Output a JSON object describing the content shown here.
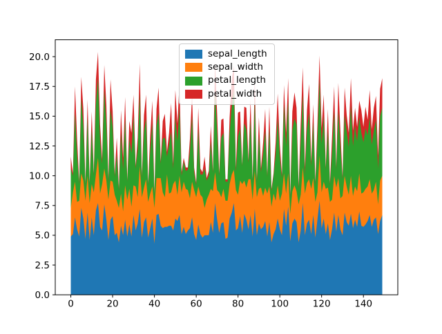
{
  "figure": {
    "background_color": "#ffffff"
  },
  "legend": {
    "position": "upper center"
  },
  "chart_data": {
    "type": "area",
    "stacked": true,
    "title": "",
    "xlabel": "",
    "ylabel": "",
    "grid": false,
    "n_points": 150,
    "xlim": [
      -7.45,
      156.45
    ],
    "ylim": [
      0,
      21.42
    ],
    "x_tick_labels": [
      "0",
      "20",
      "40",
      "60",
      "80",
      "100",
      "120",
      "140"
    ],
    "x_tick_values": [
      0,
      20,
      40,
      60,
      80,
      100,
      120,
      140
    ],
    "y_tick_labels": [
      "0.0",
      "2.5",
      "5.0",
      "7.5",
      "10.0",
      "12.5",
      "15.0",
      "17.5",
      "20.0"
    ],
    "y_tick_values": [
      0,
      2.5,
      5,
      7.5,
      10,
      12.5,
      15,
      17.5,
      20
    ],
    "legend_position": "upper center",
    "series": [
      {
        "name": "sepal_length",
        "color": "#1f77b4",
        "values": [
          4.9,
          5.1,
          6.5,
          5.5,
          4.9,
          7.3,
          6.4,
          4.7,
          6.9,
          4.6,
          6.5,
          5.0,
          7.1,
          7.7,
          5.7,
          5.4,
          7.6,
          6.3,
          4.6,
          6.3,
          6.6,
          5.0,
          5.2,
          4.4,
          5.8,
          5.0,
          6.3,
          4.9,
          5.9,
          4.9,
          6.7,
          5.4,
          6.0,
          7.2,
          4.8,
          6.1,
          6.5,
          4.8,
          5.6,
          6.4,
          4.3,
          6.7,
          6.8,
          5.8,
          5.6,
          5.7,
          5.7,
          5.8,
          5.8,
          5.4,
          6.4,
          6.2,
          6.7,
          5.1,
          5.7,
          5.1,
          5.4,
          5.6,
          6.5,
          5.1,
          4.6,
          5.9,
          5.1,
          4.8,
          5.0,
          5.0,
          5.0,
          6.1,
          5.2,
          7.7,
          6.3,
          5.2,
          6.0,
          6.1,
          4.7,
          4.8,
          6.4,
          6.9,
          7.7,
          5.4,
          5.6,
          6.6,
          5.2,
          6.8,
          6.3,
          5.5,
          6.7,
          4.9,
          7.2,
          5.0,
          6.0,
          5.5,
          5.7,
          6.2,
          4.9,
          6.1,
          4.4,
          5.1,
          5.5,
          6.4,
          5.5,
          5.0,
          7.2,
          5.8,
          7.4,
          4.5,
          6.0,
          6.4,
          6.1,
          4.4,
          5.4,
          7.7,
          5.0,
          6.0,
          6.3,
          5.1,
          6.7,
          4.8,
          6.3,
          7.9,
          5.6,
          6.4,
          5.1,
          6.0,
          4.6,
          5.5,
          6.9,
          5.3,
          6.7,
          5.5,
          5.0,
          6.9,
          6.1,
          5.8,
          6.8,
          5.6,
          6.3,
          5.7,
          7.0,
          5.8,
          5.7,
          5.9,
          6.2,
          6.7,
          5.7,
          6.3,
          6.5,
          5.1,
          6.2,
          6.7
        ]
      },
      {
        "name": "sepal_width",
        "color": "#ff7f0e",
        "values": [
          2.4,
          3.5,
          3.0,
          2.3,
          3.0,
          2.9,
          3.2,
          3.2,
          3.1,
          3.1,
          2.8,
          3.6,
          3.0,
          3.8,
          2.8,
          3.9,
          3.0,
          3.3,
          3.4,
          3.3,
          2.9,
          3.4,
          2.7,
          2.9,
          2.7,
          2.0,
          2.9,
          3.1,
          3.0,
          2.5,
          2.5,
          3.7,
          2.2,
          3.6,
          3.4,
          2.9,
          3.2,
          3.0,
          2.9,
          2.7,
          3.0,
          3.1,
          3.0,
          4.0,
          3.0,
          2.5,
          4.4,
          2.7,
          2.8,
          3.9,
          3.2,
          2.2,
          3.3,
          3.5,
          3.8,
          3.8,
          3.4,
          2.5,
          3.0,
          3.7,
          3.6,
          3.2,
          3.3,
          3.4,
          2.3,
          3.0,
          3.4,
          2.8,
          3.5,
          2.6,
          2.5,
          3.4,
          2.2,
          2.8,
          3.2,
          3.1,
          2.9,
          3.2,
          2.8,
          3.4,
          2.8,
          3.0,
          4.1,
          2.8,
          2.7,
          4.2,
          3.0,
          3.1,
          3.2,
          3.2,
          2.9,
          3.5,
          2.6,
          2.8,
          3.6,
          3.0,
          3.0,
          3.4,
          2.4,
          2.8,
          2.4,
          3.5,
          3.0,
          2.7,
          2.8,
          2.3,
          2.7,
          2.8,
          2.6,
          3.2,
          3.0,
          3.0,
          3.5,
          3.4,
          3.4,
          3.8,
          3.1,
          3.0,
          2.3,
          3.8,
          3.0,
          3.1,
          3.8,
          3.0,
          3.2,
          2.5,
          3.1,
          3.7,
          3.1,
          2.6,
          3.3,
          3.1,
          3.0,
          2.6,
          3.2,
          2.7,
          2.8,
          3.0,
          3.2,
          2.7,
          2.9,
          3.0,
          2.9,
          3.0,
          2.8,
          2.5,
          3.0,
          2.5,
          3.4,
          3.3
        ]
      },
      {
        "name": "petal_length",
        "color": "#2ca02c",
        "values": [
          3.3,
          1.4,
          5.8,
          4.0,
          1.4,
          6.3,
          4.5,
          1.3,
          4.9,
          1.5,
          4.6,
          1.4,
          5.9,
          6.7,
          4.5,
          1.7,
          6.6,
          4.7,
          1.4,
          6.0,
          4.6,
          1.5,
          3.9,
          1.4,
          5.1,
          3.5,
          5.6,
          1.5,
          4.2,
          4.5,
          5.8,
          1.5,
          4.0,
          6.1,
          1.6,
          4.7,
          5.1,
          1.4,
          3.6,
          5.3,
          1.1,
          4.4,
          5.5,
          1.2,
          4.5,
          5.0,
          1.5,
          4.1,
          5.1,
          1.3,
          5.3,
          4.5,
          5.7,
          1.4,
          1.7,
          1.5,
          1.7,
          3.9,
          5.5,
          1.5,
          1.0,
          4.8,
          1.7,
          1.9,
          3.3,
          1.6,
          1.6,
          4.0,
          1.5,
          6.9,
          4.9,
          1.4,
          5.0,
          4.7,
          1.6,
          1.6,
          4.3,
          5.7,
          6.7,
          1.5,
          4.9,
          4.4,
          1.5,
          4.8,
          4.9,
          1.4,
          5.0,
          1.5,
          6.0,
          1.2,
          4.5,
          1.3,
          3.5,
          4.8,
          1.4,
          4.9,
          1.3,
          1.5,
          3.8,
          5.6,
          3.7,
          1.3,
          5.8,
          3.9,
          6.1,
          1.3,
          5.1,
          5.6,
          5.6,
          1.3,
          4.5,
          6.1,
          1.6,
          4.5,
          5.6,
          1.9,
          4.7,
          1.4,
          4.4,
          6.4,
          4.1,
          5.5,
          1.6,
          4.8,
          1.4,
          4.0,
          5.4,
          1.5,
          5.6,
          4.4,
          1.4,
          5.1,
          4.6,
          4.0,
          5.9,
          4.2,
          5.1,
          4.2,
          4.7,
          5.1,
          4.2,
          5.1,
          4.3,
          5.2,
          4.1,
          5.0,
          5.2,
          3.0,
          5.4,
          5.7
        ]
      },
      {
        "name": "petal_width",
        "color": "#d62728",
        "values": [
          1.0,
          0.2,
          2.2,
          1.3,
          0.2,
          1.8,
          1.5,
          0.2,
          1.5,
          0.2,
          1.5,
          0.2,
          2.1,
          2.2,
          1.3,
          0.4,
          2.1,
          1.6,
          0.3,
          2.5,
          1.3,
          0.2,
          1.4,
          0.2,
          1.9,
          1.0,
          1.8,
          0.1,
          1.5,
          1.7,
          1.8,
          0.2,
          1.0,
          2.5,
          0.2,
          1.4,
          2.0,
          0.1,
          1.3,
          1.9,
          0.1,
          1.4,
          2.1,
          0.2,
          1.5,
          2.0,
          0.4,
          1.0,
          2.4,
          0.4,
          2.3,
          1.5,
          2.1,
          0.3,
          0.3,
          0.3,
          0.2,
          1.1,
          1.8,
          0.4,
          0.2,
          1.8,
          0.5,
          0.2,
          1.0,
          0.2,
          0.4,
          1.3,
          0.2,
          2.3,
          1.5,
          0.2,
          1.5,
          1.2,
          0.2,
          0.2,
          1.3,
          2.3,
          2.0,
          0.4,
          2.0,
          1.4,
          0.1,
          1.4,
          1.8,
          0.2,
          1.7,
          0.2,
          1.8,
          0.2,
          1.5,
          0.3,
          1.0,
          1.8,
          0.1,
          1.8,
          0.2,
          0.2,
          1.1,
          2.1,
          1.0,
          0.3,
          1.6,
          1.2,
          1.9,
          0.3,
          1.6,
          2.2,
          1.4,
          0.2,
          1.5,
          2.3,
          0.6,
          1.6,
          2.4,
          0.4,
          1.5,
          0.3,
          1.3,
          2.0,
          1.3,
          1.8,
          0.2,
          1.8,
          0.2,
          1.3,
          2.1,
          0.2,
          2.4,
          1.2,
          0.2,
          2.3,
          1.4,
          1.2,
          2.3,
          1.3,
          1.5,
          1.2,
          1.4,
          1.9,
          1.3,
          1.8,
          1.3,
          2.3,
          1.3,
          1.9,
          2.0,
          1.1,
          2.3,
          2.5
        ]
      }
    ]
  }
}
